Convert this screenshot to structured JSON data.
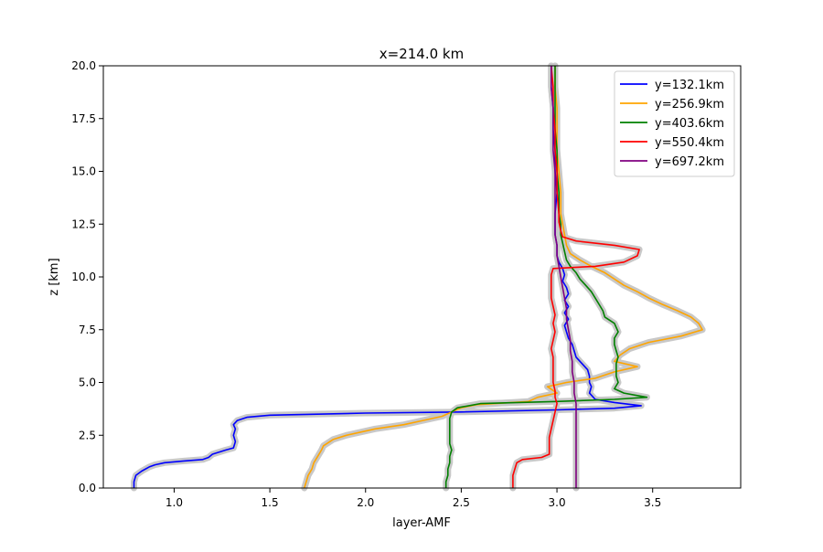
{
  "chart_data": {
    "type": "line",
    "title": "x=214.0 km",
    "xlabel": "layer-AMF",
    "ylabel": "z [km]",
    "xlim": [
      0.63,
      3.96
    ],
    "ylim": [
      0,
      20
    ],
    "x_ticks": [
      1.0,
      1.5,
      2.0,
      2.5,
      3.0,
      3.5
    ],
    "x_tick_labels": [
      "1.0",
      "1.5",
      "2.0",
      "2.5",
      "3.0",
      "3.5"
    ],
    "y_ticks": [
      0,
      2.5,
      5,
      7.5,
      10,
      12.5,
      15,
      17.5,
      20
    ],
    "y_tick_labels": [
      "0.0",
      "2.5",
      "5.0",
      "7.5",
      "10.0",
      "12.5",
      "15.0",
      "17.5",
      "20.0"
    ],
    "grid": false,
    "legend_position": "upper right",
    "band_color": "#c8c8c8",
    "series": [
      {
        "name": "y=132.1km",
        "color": "#0000ff",
        "points": [
          [
            0.79,
            0.0
          ],
          [
            0.79,
            0.3
          ],
          [
            0.8,
            0.6
          ],
          [
            0.83,
            0.8
          ],
          [
            0.87,
            1.0
          ],
          [
            0.9,
            1.1
          ],
          [
            0.95,
            1.2
          ],
          [
            1.05,
            1.28
          ],
          [
            1.15,
            1.35
          ],
          [
            1.18,
            1.45
          ],
          [
            1.2,
            1.6
          ],
          [
            1.27,
            1.8
          ],
          [
            1.31,
            1.9
          ],
          [
            1.32,
            2.2
          ],
          [
            1.31,
            2.5
          ],
          [
            1.32,
            2.8
          ],
          [
            1.31,
            3.0
          ],
          [
            1.33,
            3.2
          ],
          [
            1.38,
            3.35
          ],
          [
            1.5,
            3.45
          ],
          [
            2.0,
            3.55
          ],
          [
            2.5,
            3.6
          ],
          [
            3.0,
            3.7
          ],
          [
            3.3,
            3.78
          ],
          [
            3.44,
            3.9
          ],
          [
            3.3,
            4.05
          ],
          [
            3.2,
            4.2
          ],
          [
            3.17,
            4.5
          ],
          [
            3.18,
            4.8
          ],
          [
            3.17,
            5.0
          ],
          [
            3.17,
            5.3
          ],
          [
            3.16,
            5.6
          ],
          [
            3.13,
            5.9
          ],
          [
            3.1,
            6.2
          ],
          [
            3.09,
            6.5
          ],
          [
            3.08,
            6.8
          ],
          [
            3.06,
            7.1
          ],
          [
            3.05,
            7.4
          ],
          [
            3.04,
            7.7
          ],
          [
            3.06,
            8.0
          ],
          [
            3.04,
            8.3
          ],
          [
            3.06,
            8.6
          ],
          [
            3.04,
            8.9
          ],
          [
            3.06,
            9.2
          ],
          [
            3.05,
            9.5
          ],
          [
            3.03,
            9.8
          ],
          [
            3.04,
            10.1
          ],
          [
            3.03,
            10.4
          ],
          [
            3.01,
            10.7
          ],
          [
            3.0,
            11.0
          ],
          [
            3.0,
            11.5
          ],
          [
            2.99,
            12.0
          ],
          [
            2.99,
            13.0
          ],
          [
            3.0,
            14.0
          ],
          [
            2.99,
            15.0
          ],
          [
            2.99,
            16.0
          ],
          [
            2.98,
            17.0
          ],
          [
            2.98,
            18.0
          ],
          [
            2.97,
            19.0
          ],
          [
            2.97,
            20.0
          ]
        ]
      },
      {
        "name": "y=256.9km",
        "color": "#ffa500",
        "points": [
          [
            1.68,
            0.0
          ],
          [
            1.69,
            0.3
          ],
          [
            1.7,
            0.6
          ],
          [
            1.72,
            0.9
          ],
          [
            1.73,
            1.2
          ],
          [
            1.75,
            1.5
          ],
          [
            1.77,
            1.8
          ],
          [
            1.78,
            2.0
          ],
          [
            1.83,
            2.3
          ],
          [
            1.9,
            2.5
          ],
          [
            2.05,
            2.8
          ],
          [
            2.2,
            3.0
          ],
          [
            2.3,
            3.2
          ],
          [
            2.4,
            3.4
          ],
          [
            2.45,
            3.6
          ],
          [
            2.5,
            3.8
          ],
          [
            2.58,
            3.95
          ],
          [
            2.85,
            4.1
          ],
          [
            2.9,
            4.3
          ],
          [
            3.0,
            4.5
          ],
          [
            2.95,
            4.8
          ],
          [
            3.05,
            5.0
          ],
          [
            3.2,
            5.2
          ],
          [
            3.3,
            5.5
          ],
          [
            3.42,
            5.75
          ],
          [
            3.3,
            6.0
          ],
          [
            3.33,
            6.3
          ],
          [
            3.38,
            6.6
          ],
          [
            3.48,
            6.9
          ],
          [
            3.65,
            7.2
          ],
          [
            3.76,
            7.5
          ],
          [
            3.74,
            7.8
          ],
          [
            3.7,
            8.1
          ],
          [
            3.63,
            8.4
          ],
          [
            3.55,
            8.7
          ],
          [
            3.48,
            9.0
          ],
          [
            3.42,
            9.3
          ],
          [
            3.35,
            9.6
          ],
          [
            3.3,
            9.9
          ],
          [
            3.25,
            10.2
          ],
          [
            3.18,
            10.5
          ],
          [
            3.12,
            10.8
          ],
          [
            3.07,
            11.1
          ],
          [
            3.05,
            11.5
          ],
          [
            3.04,
            12.0
          ],
          [
            3.03,
            12.5
          ],
          [
            3.02,
            13.0
          ],
          [
            3.02,
            14.0
          ],
          [
            3.01,
            15.0
          ],
          [
            3.0,
            16.0
          ],
          [
            3.0,
            17.0
          ],
          [
            3.0,
            18.0
          ],
          [
            2.99,
            19.0
          ],
          [
            2.99,
            20.0
          ]
        ]
      },
      {
        "name": "y=403.6km",
        "color": "#008000",
        "points": [
          [
            2.42,
            0.0
          ],
          [
            2.42,
            0.3
          ],
          [
            2.43,
            0.6
          ],
          [
            2.43,
            0.9
          ],
          [
            2.44,
            1.2
          ],
          [
            2.44,
            1.5
          ],
          [
            2.45,
            1.8
          ],
          [
            2.44,
            2.1
          ],
          [
            2.44,
            2.4
          ],
          [
            2.44,
            2.7
          ],
          [
            2.44,
            3.0
          ],
          [
            2.44,
            3.3
          ],
          [
            2.45,
            3.6
          ],
          [
            2.48,
            3.8
          ],
          [
            2.6,
            4.0
          ],
          [
            3.0,
            4.1
          ],
          [
            3.3,
            4.2
          ],
          [
            3.47,
            4.3
          ],
          [
            3.35,
            4.5
          ],
          [
            3.3,
            4.7
          ],
          [
            3.32,
            5.0
          ],
          [
            3.31,
            5.3
          ],
          [
            3.31,
            5.6
          ],
          [
            3.31,
            5.9
          ],
          [
            3.32,
            6.2
          ],
          [
            3.31,
            6.5
          ],
          [
            3.3,
            6.8
          ],
          [
            3.3,
            7.1
          ],
          [
            3.32,
            7.4
          ],
          [
            3.3,
            7.8
          ],
          [
            3.25,
            8.1
          ],
          [
            3.24,
            8.4
          ],
          [
            3.22,
            8.7
          ],
          [
            3.2,
            9.0
          ],
          [
            3.18,
            9.3
          ],
          [
            3.15,
            9.6
          ],
          [
            3.12,
            9.9
          ],
          [
            3.1,
            10.2
          ],
          [
            3.07,
            10.5
          ],
          [
            3.05,
            10.8
          ],
          [
            3.04,
            11.2
          ],
          [
            3.03,
            11.6
          ],
          [
            3.02,
            12.0
          ],
          [
            3.02,
            12.5
          ],
          [
            3.01,
            13.0
          ],
          [
            3.01,
            14.0
          ],
          [
            3.0,
            15.0
          ],
          [
            3.0,
            16.0
          ],
          [
            2.99,
            17.0
          ],
          [
            2.99,
            18.0
          ],
          [
            2.99,
            19.0
          ],
          [
            2.99,
            20.0
          ]
        ]
      },
      {
        "name": "y=550.4km",
        "color": "#ff0000",
        "points": [
          [
            2.77,
            0.0
          ],
          [
            2.77,
            0.3
          ],
          [
            2.77,
            0.6
          ],
          [
            2.78,
            0.9
          ],
          [
            2.79,
            1.2
          ],
          [
            2.82,
            1.35
          ],
          [
            2.92,
            1.45
          ],
          [
            2.96,
            1.6
          ],
          [
            2.96,
            2.0
          ],
          [
            2.96,
            2.4
          ],
          [
            2.97,
            2.8
          ],
          [
            2.98,
            3.2
          ],
          [
            2.99,
            3.6
          ],
          [
            3.0,
            4.0
          ],
          [
            2.99,
            4.3
          ],
          [
            2.99,
            4.6
          ],
          [
            2.98,
            5.0
          ],
          [
            2.98,
            5.4
          ],
          [
            2.98,
            5.8
          ],
          [
            2.98,
            6.2
          ],
          [
            2.97,
            6.6
          ],
          [
            2.98,
            7.0
          ],
          [
            2.99,
            7.4
          ],
          [
            2.98,
            7.8
          ],
          [
            2.99,
            8.2
          ],
          [
            2.98,
            8.6
          ],
          [
            2.97,
            9.0
          ],
          [
            2.97,
            9.4
          ],
          [
            2.97,
            9.8
          ],
          [
            2.97,
            10.1
          ],
          [
            2.98,
            10.4
          ],
          [
            3.2,
            10.5
          ],
          [
            3.35,
            10.7
          ],
          [
            3.42,
            11.0
          ],
          [
            3.43,
            11.3
          ],
          [
            3.3,
            11.5
          ],
          [
            3.1,
            11.7
          ],
          [
            3.03,
            11.9
          ],
          [
            3.02,
            12.2
          ],
          [
            3.01,
            12.6
          ],
          [
            3.01,
            13.0
          ],
          [
            3.0,
            14.0
          ],
          [
            3.0,
            15.0
          ],
          [
            2.99,
            16.0
          ],
          [
            2.99,
            17.0
          ],
          [
            2.98,
            18.0
          ],
          [
            2.98,
            19.0
          ],
          [
            2.97,
            20.0
          ]
        ]
      },
      {
        "name": "y=697.2km",
        "color": "#800080",
        "points": [
          [
            3.1,
            0.0
          ],
          [
            3.1,
            0.5
          ],
          [
            3.1,
            1.0
          ],
          [
            3.1,
            1.5
          ],
          [
            3.1,
            2.0
          ],
          [
            3.1,
            2.5
          ],
          [
            3.1,
            3.0
          ],
          [
            3.1,
            3.5
          ],
          [
            3.1,
            4.0
          ],
          [
            3.09,
            4.5
          ],
          [
            3.09,
            5.0
          ],
          [
            3.08,
            5.5
          ],
          [
            3.08,
            6.0
          ],
          [
            3.07,
            6.5
          ],
          [
            3.07,
            7.0
          ],
          [
            3.06,
            7.5
          ],
          [
            3.05,
            8.0
          ],
          [
            3.05,
            8.5
          ],
          [
            3.04,
            9.0
          ],
          [
            3.03,
            9.5
          ],
          [
            3.02,
            10.0
          ],
          [
            3.01,
            10.5
          ],
          [
            3.0,
            11.0
          ],
          [
            3.0,
            11.5
          ],
          [
            2.99,
            12.0
          ],
          [
            2.99,
            13.0
          ],
          [
            2.99,
            14.0
          ],
          [
            2.99,
            15.0
          ],
          [
            2.98,
            16.0
          ],
          [
            2.98,
            17.0
          ],
          [
            2.98,
            18.0
          ],
          [
            2.97,
            19.0
          ],
          [
            2.97,
            20.0
          ]
        ]
      }
    ]
  }
}
